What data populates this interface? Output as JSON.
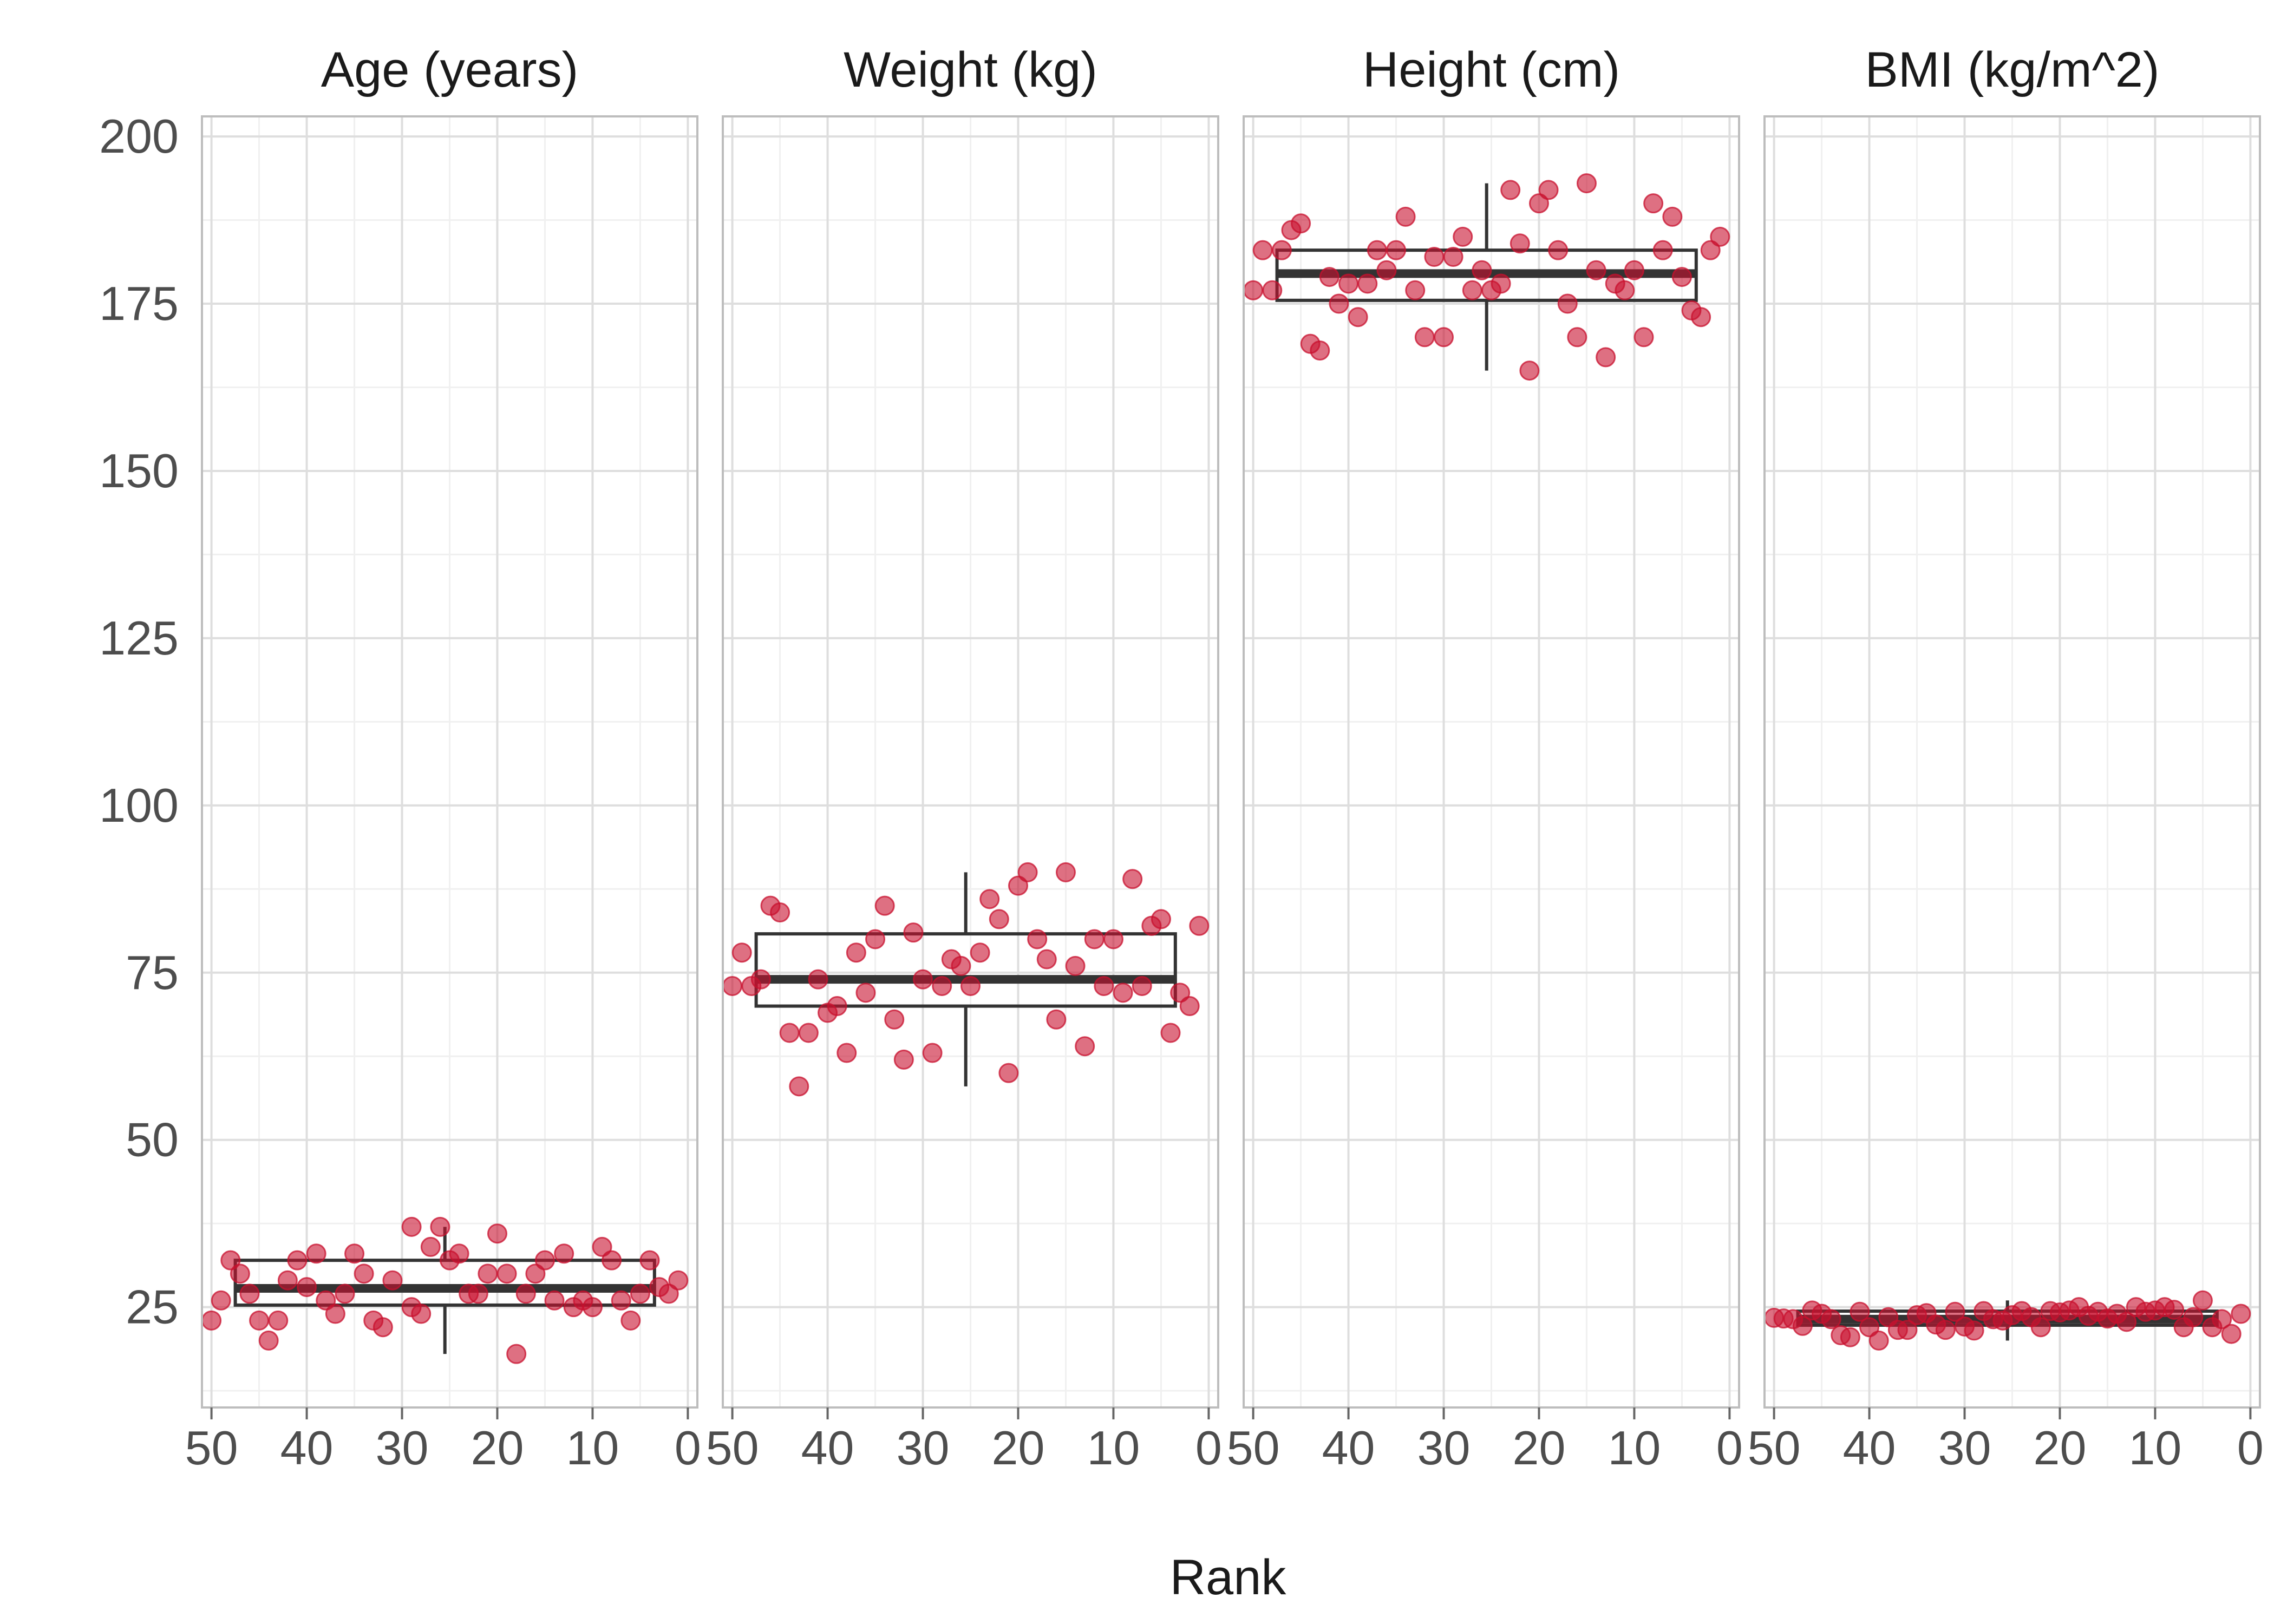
{
  "chart_data": {
    "type": "scatter",
    "xlabel": "Rank",
    "ylabel": "",
    "x_reversed": true,
    "xlim": [
      51,
      -1
    ],
    "ylim": [
      10,
      203
    ],
    "x_ticks": [
      50,
      40,
      30,
      20,
      10,
      0
    ],
    "y_ticks": [
      25,
      50,
      75,
      100,
      125,
      150,
      175,
      200
    ],
    "grid": true,
    "point_color": "#C8102E",
    "box_color": "#333333",
    "facets": [
      {
        "title": "Age (years)",
        "box": {
          "x_min": 47.5,
          "x_max": 3.5,
          "q1": 25.3,
          "median": 27.8,
          "q3": 32.0,
          "whisker_low": 18,
          "whisker_high": 37,
          "whisker_x": 25.5
        },
        "points": [
          [
            50,
            23
          ],
          [
            49,
            26
          ],
          [
            48,
            32
          ],
          [
            47,
            30
          ],
          [
            46,
            27
          ],
          [
            45,
            23
          ],
          [
            44,
            20
          ],
          [
            43,
            23
          ],
          [
            42,
            29
          ],
          [
            41,
            32
          ],
          [
            40,
            28
          ],
          [
            39,
            33
          ],
          [
            38,
            26
          ],
          [
            37,
            24
          ],
          [
            36,
            27
          ],
          [
            35,
            33
          ],
          [
            34,
            30
          ],
          [
            33,
            23
          ],
          [
            32,
            22
          ],
          [
            31,
            29
          ],
          [
            29,
            25
          ],
          [
            29,
            37
          ],
          [
            28,
            24
          ],
          [
            27,
            34
          ],
          [
            26,
            37
          ],
          [
            25,
            32
          ],
          [
            24,
            33
          ],
          [
            23,
            27
          ],
          [
            22,
            27
          ],
          [
            21,
            30
          ],
          [
            20,
            36
          ],
          [
            19,
            30
          ],
          [
            18,
            18
          ],
          [
            17,
            27
          ],
          [
            16,
            30
          ],
          [
            15,
            32
          ],
          [
            14,
            26
          ],
          [
            13,
            33
          ],
          [
            12,
            25
          ],
          [
            11,
            26
          ],
          [
            10,
            25
          ],
          [
            9,
            34
          ],
          [
            8,
            32
          ],
          [
            7,
            26
          ],
          [
            6,
            23
          ],
          [
            5,
            27
          ],
          [
            4,
            32
          ],
          [
            3,
            28
          ],
          [
            2,
            27
          ],
          [
            1,
            29
          ]
        ]
      },
      {
        "title": "Weight (kg)",
        "box": {
          "x_min": 47.5,
          "x_max": 3.5,
          "q1": 70.0,
          "median": 74.0,
          "q3": 80.8,
          "whisker_low": 58,
          "whisker_high": 90,
          "whisker_x": 25.5
        },
        "points": [
          [
            50,
            73
          ],
          [
            49,
            78
          ],
          [
            48,
            73
          ],
          [
            47,
            74
          ],
          [
            46,
            85
          ],
          [
            45,
            84
          ],
          [
            44,
            66
          ],
          [
            43,
            58
          ],
          [
            42,
            66
          ],
          [
            41,
            74
          ],
          [
            40,
            69
          ],
          [
            39,
            70
          ],
          [
            38,
            63
          ],
          [
            37,
            78
          ],
          [
            36,
            72
          ],
          [
            35,
            80
          ],
          [
            34,
            85
          ],
          [
            33,
            68
          ],
          [
            32,
            62
          ],
          [
            31,
            81
          ],
          [
            30,
            74
          ],
          [
            29,
            63
          ],
          [
            28,
            73
          ],
          [
            27,
            77
          ],
          [
            26,
            76
          ],
          [
            25,
            73
          ],
          [
            24,
            78
          ],
          [
            23,
            86
          ],
          [
            22,
            83
          ],
          [
            21,
            60
          ],
          [
            20,
            88
          ],
          [
            19,
            90
          ],
          [
            18,
            80
          ],
          [
            17,
            77
          ],
          [
            16,
            68
          ],
          [
            15,
            90
          ],
          [
            14,
            76
          ],
          [
            13,
            64
          ],
          [
            12,
            80
          ],
          [
            11,
            73
          ],
          [
            10,
            80
          ],
          [
            9,
            72
          ],
          [
            8,
            89
          ],
          [
            7,
            73
          ],
          [
            6,
            82
          ],
          [
            5,
            83
          ],
          [
            4,
            66
          ],
          [
            3,
            72
          ],
          [
            2,
            70
          ],
          [
            1,
            82
          ]
        ]
      },
      {
        "title": "Height (cm)",
        "box": {
          "x_min": 47.5,
          "x_max": 3.5,
          "q1": 175.5,
          "median": 179.5,
          "q3": 183.0,
          "whisker_low": 165,
          "whisker_high": 193,
          "whisker_x": 25.5
        },
        "points": [
          [
            50,
            177
          ],
          [
            49,
            183
          ],
          [
            48,
            177
          ],
          [
            47,
            183
          ],
          [
            46,
            186
          ],
          [
            45,
            187
          ],
          [
            44,
            169
          ],
          [
            43,
            168
          ],
          [
            42,
            179
          ],
          [
            41,
            175
          ],
          [
            40,
            178
          ],
          [
            39,
            173
          ],
          [
            38,
            178
          ],
          [
            37,
            183
          ],
          [
            36,
            180
          ],
          [
            35,
            183
          ],
          [
            34,
            188
          ],
          [
            33,
            177
          ],
          [
            32,
            170
          ],
          [
            31,
            182
          ],
          [
            30,
            170
          ],
          [
            29,
            182
          ],
          [
            28,
            185
          ],
          [
            27,
            177
          ],
          [
            26,
            180
          ],
          [
            25,
            177
          ],
          [
            24,
            178
          ],
          [
            23,
            192
          ],
          [
            22,
            184
          ],
          [
            21,
            165
          ],
          [
            20,
            190
          ],
          [
            19,
            192
          ],
          [
            18,
            183
          ],
          [
            17,
            175
          ],
          [
            16,
            170
          ],
          [
            15,
            193
          ],
          [
            14,
            180
          ],
          [
            13,
            167
          ],
          [
            12,
            178
          ],
          [
            11,
            177
          ],
          [
            10,
            180
          ],
          [
            9,
            170
          ],
          [
            8,
            190
          ],
          [
            7,
            183
          ],
          [
            6,
            188
          ],
          [
            5,
            179
          ],
          [
            4,
            174
          ],
          [
            3,
            173
          ],
          [
            2,
            183
          ],
          [
            1,
            185
          ]
        ]
      },
      {
        "title": "BMI (kg/m^2)",
        "box": {
          "x_min": 47.5,
          "x_max": 3.5,
          "q1": 22.3,
          "median": 23.2,
          "q3": 24.4,
          "whisker_low": 20,
          "whisker_high": 26,
          "whisker_x": 25.5
        },
        "points": [
          [
            50,
            23.4
          ],
          [
            49,
            23.3
          ],
          [
            48,
            23.2
          ],
          [
            47,
            22.2
          ],
          [
            46,
            24.5
          ],
          [
            45,
            24.0
          ],
          [
            44,
            23.2
          ],
          [
            43,
            20.8
          ],
          [
            42,
            20.5
          ],
          [
            41,
            24.3
          ],
          [
            40,
            22.0
          ],
          [
            39,
            20.0
          ],
          [
            38,
            23.5
          ],
          [
            37,
            21.6
          ],
          [
            36,
            21.6
          ],
          [
            35,
            23.8
          ],
          [
            34,
            24.1
          ],
          [
            33,
            22.4
          ],
          [
            32,
            21.6
          ],
          [
            31,
            24.3
          ],
          [
            30,
            22.1
          ],
          [
            29,
            21.5
          ],
          [
            28,
            24.4
          ],
          [
            27,
            23.2
          ],
          [
            26,
            23.0
          ],
          [
            25,
            23.8
          ],
          [
            24,
            24.4
          ],
          [
            23,
            23.5
          ],
          [
            22,
            22.0
          ],
          [
            21,
            24.4
          ],
          [
            20,
            24.2
          ],
          [
            19,
            24.5
          ],
          [
            18,
            25.0
          ],
          [
            17,
            23.7
          ],
          [
            16,
            24.3
          ],
          [
            15,
            23.3
          ],
          [
            14,
            24.0
          ],
          [
            13,
            22.8
          ],
          [
            12,
            25.0
          ],
          [
            11,
            24.3
          ],
          [
            10,
            24.5
          ],
          [
            9,
            25.0
          ],
          [
            8,
            24.6
          ],
          [
            7,
            22.0
          ],
          [
            6,
            23.5
          ],
          [
            5,
            26.0
          ],
          [
            4,
            22.0
          ],
          [
            3,
            23.2
          ],
          [
            2,
            21.0
          ],
          [
            1,
            24.0
          ]
        ]
      }
    ]
  }
}
